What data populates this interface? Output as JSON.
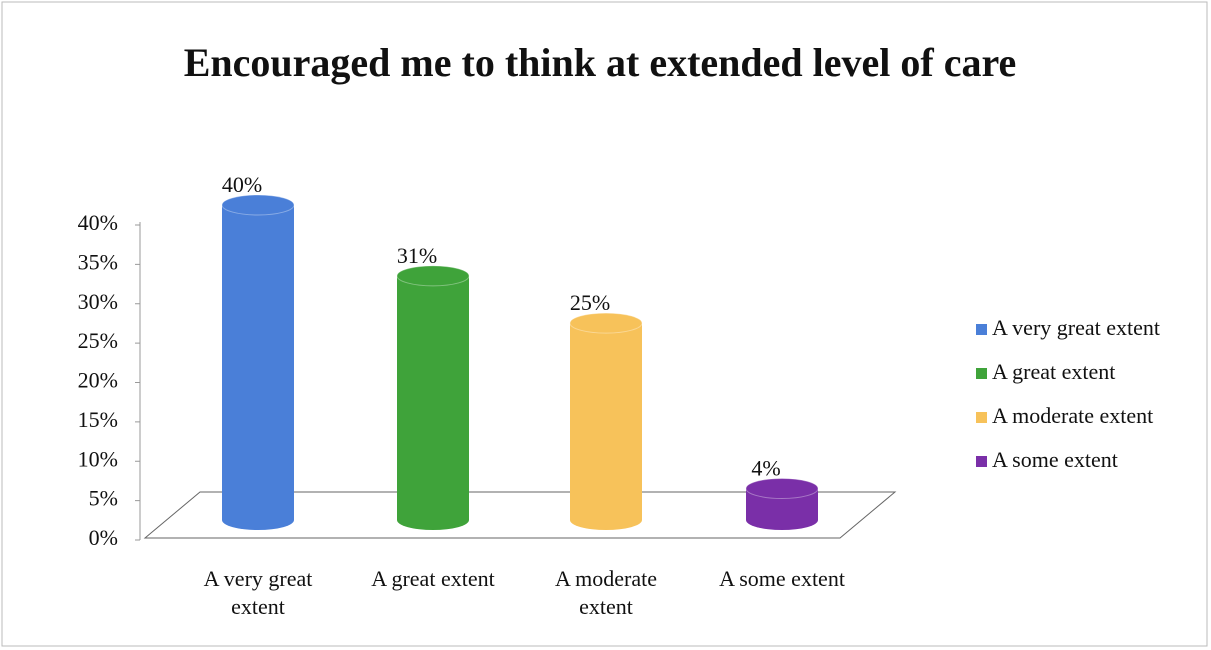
{
  "chart_data": {
    "type": "bar3d",
    "title": "Encouraged me to think at extended level of care",
    "categories": [
      "A very great extent",
      "A great extent",
      "A moderate extent",
      "A some extent"
    ],
    "values": [
      40,
      31,
      25,
      4
    ],
    "value_labels": [
      "40%",
      "31%",
      "25%",
      "4%"
    ],
    "colors": [
      "#4a7fd8",
      "#3fa33a",
      "#f7c25a",
      "#7a2fa8"
    ],
    "ylim": [
      0,
      40
    ],
    "yticks": [
      {
        "value": 0,
        "label": "0%"
      },
      {
        "value": 5,
        "label": "5%"
      },
      {
        "value": 10,
        "label": "10%"
      },
      {
        "value": 15,
        "label": "15%"
      },
      {
        "value": 20,
        "label": "20%"
      },
      {
        "value": 25,
        "label": "25%"
      },
      {
        "value": 30,
        "label": "30%"
      },
      {
        "value": 35,
        "label": "35%"
      },
      {
        "value": 40,
        "label": "40%"
      }
    ],
    "legend": "right"
  }
}
